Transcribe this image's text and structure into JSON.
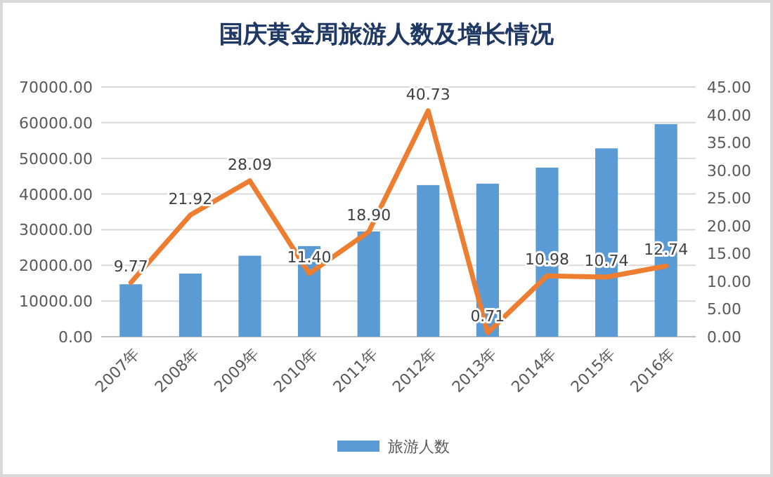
{
  "chart_data": {
    "type": "bar",
    "title": "国庆黄金周旅游人数及增长情况",
    "categories": [
      "2007年",
      "2008年",
      "2009年",
      "2010年",
      "2011年",
      "2012年",
      "2013年",
      "2014年",
      "2015年",
      "2016年"
    ],
    "series": [
      {
        "name": "旅游人数",
        "color": "#5b9bd5",
        "values": [
          14700,
          17700,
          22700,
          25400,
          29500,
          42500,
          42900,
          47400,
          52800,
          59600
        ]
      },
      {
        "type": "line",
        "axis": "y2",
        "color": "#ed7d31",
        "values": [
          9.77,
          21.92,
          28.09,
          11.4,
          18.9,
          40.73,
          0.71,
          10.98,
          10.74,
          12.74
        ],
        "value_labels": [
          "9.77",
          "21.92",
          "28.09",
          "11.40",
          "18.90",
          "40.73",
          "0.71",
          "10.98",
          "10.74",
          "12.74"
        ]
      }
    ],
    "ylim": [
      0,
      70000
    ],
    "yticks": [
      {
        "value": 0,
        "label": "0.00"
      },
      {
        "value": 10000,
        "label": "10000.00"
      },
      {
        "value": 20000,
        "label": "20000.00"
      },
      {
        "value": 30000,
        "label": "30000.00"
      },
      {
        "value": 40000,
        "label": "40000.00"
      },
      {
        "value": 50000,
        "label": "50000.00"
      },
      {
        "value": 60000,
        "label": "60000.00"
      },
      {
        "value": 70000,
        "label": "70000.00"
      }
    ],
    "y2lim": [
      0,
      45
    ],
    "y2ticks": [
      {
        "value": 0,
        "label": "0.00"
      },
      {
        "value": 5,
        "label": "5.00"
      },
      {
        "value": 10,
        "label": "10.00"
      },
      {
        "value": 15,
        "label": "15.00"
      },
      {
        "value": 20,
        "label": "20.00"
      },
      {
        "value": 25,
        "label": "25.00"
      },
      {
        "value": 30,
        "label": "30.00"
      },
      {
        "value": 35,
        "label": "35.00"
      },
      {
        "value": 40,
        "label": "40.00"
      },
      {
        "value": 45,
        "label": "45.00"
      }
    ],
    "grid": "y",
    "legend": "bottom",
    "marker": "none"
  }
}
